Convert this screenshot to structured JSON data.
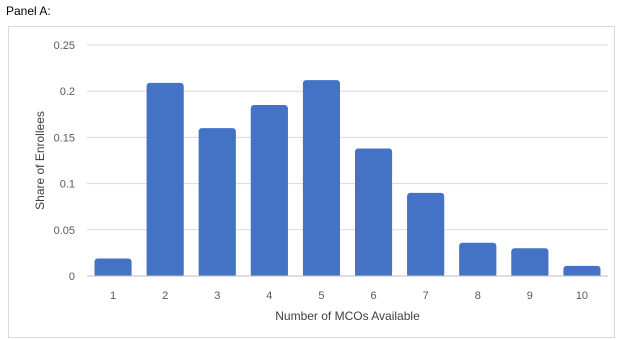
{
  "panel_label": "Panel A:",
  "colors": {
    "bar": "#4472c4",
    "grid": "#d9d9d9",
    "axis": "#bfbfbf",
    "text": "#595959"
  },
  "chart_data": {
    "type": "bar",
    "categories": [
      "1",
      "2",
      "3",
      "4",
      "5",
      "6",
      "7",
      "8",
      "9",
      "10"
    ],
    "values": [
      0.019,
      0.209,
      0.16,
      0.185,
      0.212,
      0.138,
      0.09,
      0.036,
      0.03,
      0.011
    ],
    "xlabel": "Number of MCOs Available",
    "ylabel": "Share of Enrollees",
    "ylim": [
      0,
      0.25
    ],
    "yticks": [
      "0",
      "0.05",
      "0.1",
      "0.15",
      "0.2",
      "0.25"
    ],
    "grid": true,
    "legend": "none"
  }
}
